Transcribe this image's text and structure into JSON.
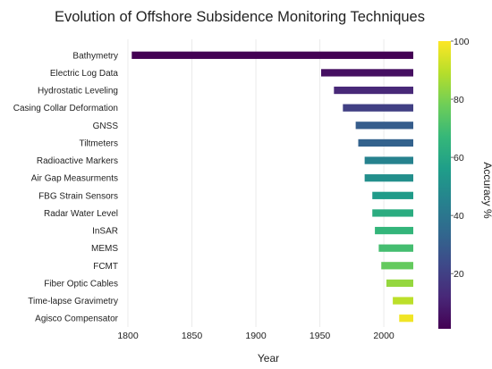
{
  "chart_data": {
    "type": "bar",
    "orientation": "horizontal",
    "title": "Evolution of Offshore Subsidence Monitoring Techniques",
    "xlabel": "Year",
    "xlim": [
      1800,
      2023
    ],
    "xticks": [
      1800,
      1850,
      1900,
      1950,
      2000
    ],
    "grid": true,
    "bar_end": 2023,
    "colorbar": {
      "label": "Accuracy %",
      "min": 1,
      "max": 100,
      "ticks": [
        20,
        40,
        60,
        80,
        100
      ],
      "colormap": "viridis",
      "stops": [
        "#440154",
        "#482878",
        "#3e4989",
        "#31688e",
        "#26828e",
        "#1f9e89",
        "#35b779",
        "#6ece58",
        "#b5de2b",
        "#fde725"
      ]
    },
    "bars": [
      {
        "category": "Bathymetry",
        "start": 1803,
        "accuracy": 1
      },
      {
        "category": "Electric Log Data",
        "start": 1951,
        "accuracy": 5
      },
      {
        "category": "Hydrostatic Leveling",
        "start": 1961,
        "accuracy": 12
      },
      {
        "category": "Casing Collar Deformation",
        "start": 1968,
        "accuracy": 20
      },
      {
        "category": "GNSS",
        "start": 1978,
        "accuracy": 30
      },
      {
        "category": "Tiltmeters",
        "start": 1980,
        "accuracy": 32
      },
      {
        "category": "Radioactive Markers",
        "start": 1985,
        "accuracy": 45
      },
      {
        "category": "Air Gap Measurments",
        "start": 1985,
        "accuracy": 50
      },
      {
        "category": "FBG Strain Sensors",
        "start": 1991,
        "accuracy": 55
      },
      {
        "category": "Radar Water Level",
        "start": 1991,
        "accuracy": 62
      },
      {
        "category": "InSAR",
        "start": 1993,
        "accuracy": 66
      },
      {
        "category": "MEMS",
        "start": 1996,
        "accuracy": 70
      },
      {
        "category": "FCMT",
        "start": 1998,
        "accuracy": 76
      },
      {
        "category": "Fiber Optic Cables",
        "start": 2002,
        "accuracy": 84
      },
      {
        "category": "Time-lapse Gravimetry",
        "start": 2007,
        "accuracy": 90
      },
      {
        "category": "Agisco Compensator",
        "start": 2012,
        "accuracy": 98
      }
    ]
  }
}
